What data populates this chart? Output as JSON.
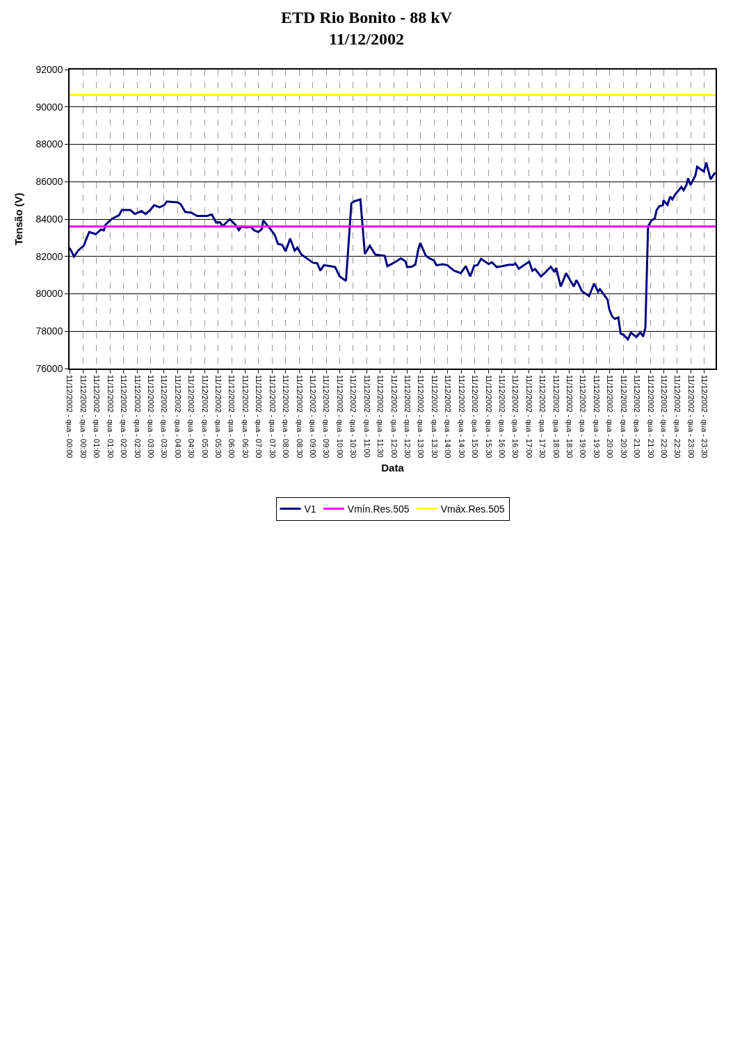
{
  "chart_data": {
    "type": "line",
    "title": "ETD Rio Bonito - 88 kV\n11/12/2002",
    "xlabel": "Data",
    "ylabel": "Tensão (V)",
    "xlim": [
      "2002-12-11T00:00",
      "2002-12-11T23:55"
    ],
    "ylim": [
      76000,
      92000
    ],
    "yticks": [
      76000,
      78000,
      80000,
      82000,
      84000,
      86000,
      88000,
      90000,
      92000
    ],
    "xticks": [
      {
        "value": "2002-12-11T00:00",
        "label": "11/12/2002 - qua - 00:00"
      },
      {
        "value": "2002-12-11T00:30",
        "label": "11/12/2002 - qua - 00:30"
      },
      {
        "value": "2002-12-11T01:00",
        "label": "11/12/2002 - qua - 01:00"
      },
      {
        "value": "2002-12-11T01:30",
        "label": "11/12/2002 - qua - 01:30"
      },
      {
        "value": "2002-12-11T02:00",
        "label": "11/12/2002 - qua - 02:00"
      },
      {
        "value": "2002-12-11T02:30",
        "label": "11/12/2002 - qua - 02:30"
      },
      {
        "value": "2002-12-11T03:00",
        "label": "11/12/2002 - qua - 03:00"
      },
      {
        "value": "2002-12-11T03:30",
        "label": "11/12/2002 - qua - 03:30"
      },
      {
        "value": "2002-12-11T04:00",
        "label": "11/12/2002 - qua - 04:00"
      },
      {
        "value": "2002-12-11T04:30",
        "label": "11/12/2002 - qua - 04:30"
      },
      {
        "value": "2002-12-11T05:00",
        "label": "11/12/2002 - qua - 05:00"
      },
      {
        "value": "2002-12-11T05:30",
        "label": "11/12/2002 - qua - 05:30"
      },
      {
        "value": "2002-12-11T06:00",
        "label": "11/12/2002 - qua - 06:00"
      },
      {
        "value": "2002-12-11T06:30",
        "label": "11/12/2002 - qua - 06:30"
      },
      {
        "value": "2002-12-11T07:00",
        "label": "11/12/2002 - qua - 07:00"
      },
      {
        "value": "2002-12-11T07:30",
        "label": "11/12/2002 - qua - 07:30"
      },
      {
        "value": "2002-12-11T08:00",
        "label": "11/12/2002 - qua - 08:00"
      },
      {
        "value": "2002-12-11T08:30",
        "label": "11/12/2002 - qua - 08:30"
      },
      {
        "value": "2002-12-11T09:00",
        "label": "11/12/2002 - qua - 09:00"
      },
      {
        "value": "2002-12-11T09:30",
        "label": "11/12/2002 - qua - 09:30"
      },
      {
        "value": "2002-12-11T10:00",
        "label": "11/12/2002 - qua - 10:00"
      },
      {
        "value": "2002-12-11T10:30",
        "label": "11/12/2002 - qua - 10:30"
      },
      {
        "value": "2002-12-11T11:00",
        "label": "11/12/2002 - qua - 11:00"
      },
      {
        "value": "2002-12-11T11:30",
        "label": "11/12/2002 - qua - 11:30"
      },
      {
        "value": "2002-12-11T12:00",
        "label": "11/12/2002 - qua - 12:00"
      },
      {
        "value": "2002-12-11T12:30",
        "label": "11/12/2002 - qua - 12:30"
      },
      {
        "value": "2002-12-11T13:00",
        "label": "11/12/2002 - qua - 13:00"
      },
      {
        "value": "2002-12-11T13:30",
        "label": "11/12/2002 - qua - 13:30"
      },
      {
        "value": "2002-12-11T14:00",
        "label": "11/12/2002 - qua - 14:00"
      },
      {
        "value": "2002-12-11T14:30",
        "label": "11/12/2002 - qua - 14:30"
      },
      {
        "value": "2002-12-11T15:00",
        "label": "11/12/2002 - qua - 15:00"
      },
      {
        "value": "2002-12-11T15:30",
        "label": "11/12/2002 - qua - 15:30"
      },
      {
        "value": "2002-12-11T16:00",
        "label": "11/12/2002 - qua - 16:00"
      },
      {
        "value": "2002-12-11T16:30",
        "label": "11/12/2002 - qua - 16:30"
      },
      {
        "value": "2002-12-11T17:00",
        "label": "11/12/2002 - qua - 17:00"
      },
      {
        "value": "2002-12-11T17:30",
        "label": "11/12/2002 - qua - 17:30"
      },
      {
        "value": "2002-12-11T18:00",
        "label": "11/12/2002 - qua - 18:00"
      },
      {
        "value": "2002-12-11T18:30",
        "label": "11/12/2002 - qua - 18:30"
      },
      {
        "value": "2002-12-11T19:00",
        "label": "11/12/2002 - qua - 19:00"
      },
      {
        "value": "2002-12-11T19:30",
        "label": "11/12/2002 - qua - 19:30"
      },
      {
        "value": "2002-12-11T20:00",
        "label": "11/12/2002 - qua - 20:00"
      },
      {
        "value": "2002-12-11T20:30",
        "label": "11/12/2002 - qua - 20:30"
      },
      {
        "value": "2002-12-11T21:00",
        "label": "11/12/2002 - qua - 21:00"
      },
      {
        "value": "2002-12-11T21:30",
        "label": "11/12/2002 - qua - 21:30"
      },
      {
        "value": "2002-12-11T22:00",
        "label": "11/12/2002 - qua - 22:00"
      },
      {
        "value": "2002-12-11T22:30",
        "label": "11/12/2002 - qua - 22:30"
      },
      {
        "value": "2002-12-11T23:00",
        "label": "11/12/2002 - qua - 23:00"
      },
      {
        "value": "2002-12-11T23:30",
        "label": "11/12/2002 - qua - 23:30"
      }
    ],
    "grid": true,
    "legend": "bottom",
    "series": [
      {
        "name": "V1",
        "color": "#000080",
        "x": [
          "2002-12-11T00:00",
          "2002-12-11T00:10",
          "2002-12-11T00:19",
          "2002-12-11T00:32",
          "2002-12-11T00:38",
          "2002-12-11T00:44",
          "2002-12-11T00:58",
          "2002-12-11T01:10",
          "2002-12-11T01:16",
          "2002-12-11T01:20",
          "2002-12-11T01:35",
          "2002-12-11T01:50",
          "2002-12-11T01:56",
          "2002-12-11T02:15",
          "2002-12-11T02:25",
          "2002-12-11T02:40",
          "2002-12-11T02:49",
          "2002-12-11T02:59",
          "2002-12-11T03:08",
          "2002-12-11T03:20",
          "2002-12-11T03:30",
          "2002-12-11T03:36",
          "2002-12-11T04:00",
          "2002-12-11T04:07",
          "2002-12-11T04:17",
          "2002-12-11T04:31",
          "2002-12-11T04:43",
          "2002-12-11T05:05",
          "2002-12-11T05:16",
          "2002-12-11T05:26",
          "2002-12-11T05:34",
          "2002-12-11T05:40",
          "2002-12-11T05:56",
          "2002-12-11T06:08",
          "2002-12-11T06:16",
          "2002-12-11T06:22",
          "2002-12-11T06:32",
          "2002-12-11T06:43",
          "2002-12-11T06:50",
          "2002-12-11T06:59",
          "2002-12-11T07:07",
          "2002-12-11T07:10",
          "2002-12-11T07:25",
          "2002-12-11T07:36",
          "2002-12-11T07:43",
          "2002-12-11T07:52",
          "2002-12-11T08:00",
          "2002-12-11T08:10",
          "2002-12-11T08:20",
          "2002-12-11T08:26",
          "2002-12-11T08:35",
          "2002-12-11T09:01",
          "2002-12-11T09:10",
          "2002-12-11T09:17",
          "2002-12-11T09:25",
          "2002-12-11T09:40",
          "2002-12-11T09:50",
          "2002-12-11T10:00",
          "2002-12-11T10:14",
          "2002-12-11T10:26",
          "2002-12-11T10:31",
          "2002-12-11T10:46",
          "2002-12-11T10:56",
          "2002-12-11T11:07",
          "2002-12-11T11:19",
          "2002-12-11T11:29",
          "2002-12-11T11:40",
          "2002-12-11T11:46",
          "2002-12-11T11:59",
          "2002-12-11T12:16",
          "2002-12-11T12:26",
          "2002-12-11T12:30",
          "2002-12-11T12:40",
          "2002-12-11T12:48",
          "2002-12-11T12:55",
          "2002-12-11T12:59",
          "2002-12-11T13:11",
          "2002-12-11T13:19",
          "2002-12-11T13:29",
          "2002-12-11T13:35",
          "2002-12-11T13:49",
          "2002-12-11T13:59",
          "2002-12-11T14:14",
          "2002-12-11T14:29",
          "2002-12-11T14:40",
          "2002-12-11T14:50",
          "2002-12-11T14:59",
          "2002-12-11T15:06",
          "2002-12-11T15:14",
          "2002-12-11T15:31",
          "2002-12-11T15:38",
          "2002-12-11T15:49",
          "2002-12-11T15:59",
          "2002-12-11T16:16",
          "2002-12-11T16:26",
          "2002-12-11T16:30",
          "2002-12-11T16:38",
          "2002-12-11T16:46",
          "2002-12-11T17:01",
          "2002-12-11T17:08",
          "2002-12-11T17:14",
          "2002-12-11T17:27",
          "2002-12-11T17:35",
          "2002-12-11T17:49",
          "2002-12-11T17:57",
          "2002-12-11T18:01",
          "2002-12-11T18:04",
          "2002-12-11T18:11",
          "2002-12-11T18:23",
          "2002-12-11T18:40",
          "2002-12-11T18:46",
          "2002-12-11T18:52",
          "2002-12-11T18:58",
          "2002-12-11T19:14",
          "2002-12-11T19:25",
          "2002-12-11T19:34",
          "2002-12-11T19:38",
          "2002-12-11T19:49",
          "2002-12-11T19:55",
          "2002-12-11T19:59",
          "2002-12-11T20:05",
          "2002-12-11T20:11",
          "2002-12-11T20:19",
          "2002-12-11T20:24",
          "2002-12-11T20:31",
          "2002-12-11T20:40",
          "2002-12-11T20:47",
          "2002-12-11T20:59",
          "2002-12-11T21:08",
          "2002-12-11T21:14",
          "2002-12-11T21:19",
          "2002-12-11T21:25",
          "2002-12-11T21:33",
          "2002-12-11T21:40",
          "2002-12-11T21:44",
          "2002-12-11T21:50",
          "2002-12-11T21:58",
          "2002-12-11T21:59",
          "2002-12-11T22:08",
          "2002-12-11T22:14",
          "2002-12-11T22:19",
          "2002-12-11T22:25",
          "2002-12-11T22:39",
          "2002-12-11T22:44",
          "2002-12-11T22:50",
          "2002-12-11T22:54",
          "2002-12-11T22:59",
          "2002-12-11T23:10",
          "2002-12-11T23:14",
          "2002-12-11T23:29",
          "2002-12-11T23:34",
          "2002-12-11T23:44",
          "2002-12-11T23:54"
        ],
        "values": [
          82460,
          82000,
          82310,
          82590,
          82980,
          83310,
          83190,
          83440,
          83390,
          83700,
          84030,
          84200,
          84480,
          84480,
          84270,
          84430,
          84270,
          84480,
          84740,
          84630,
          84740,
          84940,
          84890,
          84790,
          84380,
          84340,
          84170,
          84170,
          84240,
          83810,
          83830,
          83620,
          83990,
          83700,
          83410,
          83600,
          83550,
          83580,
          83400,
          83310,
          83450,
          83930,
          83500,
          83140,
          82670,
          82620,
          82280,
          82960,
          82310,
          82470,
          82100,
          81660,
          81640,
          81240,
          81530,
          81480,
          81430,
          80930,
          80690,
          84840,
          84940,
          85050,
          82130,
          82570,
          82100,
          82070,
          82030,
          81480,
          81640,
          81900,
          81740,
          81430,
          81450,
          81560,
          82410,
          82720,
          82050,
          81900,
          81790,
          81530,
          81580,
          81530,
          81240,
          81100,
          81480,
          80930,
          81510,
          81530,
          81870,
          81590,
          81690,
          81430,
          81470,
          81550,
          81550,
          81630,
          81340,
          81480,
          81720,
          81230,
          81330,
          80930,
          81100,
          81450,
          81170,
          81380,
          81070,
          80390,
          81100,
          80390,
          80730,
          80450,
          80140,
          79880,
          80550,
          80110,
          80250,
          79880,
          79680,
          79160,
          78800,
          78660,
          78730,
          77870,
          77800,
          77560,
          77920,
          77690,
          77940,
          77710,
          78180,
          83620,
          83930,
          84040,
          84480,
          84690,
          84740,
          85000,
          84760,
          85200,
          85050,
          85310,
          85720,
          85540,
          85820,
          86180,
          85820,
          86330,
          86800,
          86540,
          87030,
          86130,
          86490
        ]
      },
      {
        "name": "Vmín.Res.505",
        "color": "#ff00ff",
        "x": [
          "2002-12-11T00:00",
          "2002-12-11T23:55"
        ],
        "values": [
          83600,
          83600
        ]
      },
      {
        "name": "Vmáx.Res.505",
        "color": "#ffff00",
        "x": [
          "2002-12-11T00:00",
          "2002-12-11T23:55"
        ],
        "values": [
          90640,
          90640
        ]
      }
    ]
  }
}
